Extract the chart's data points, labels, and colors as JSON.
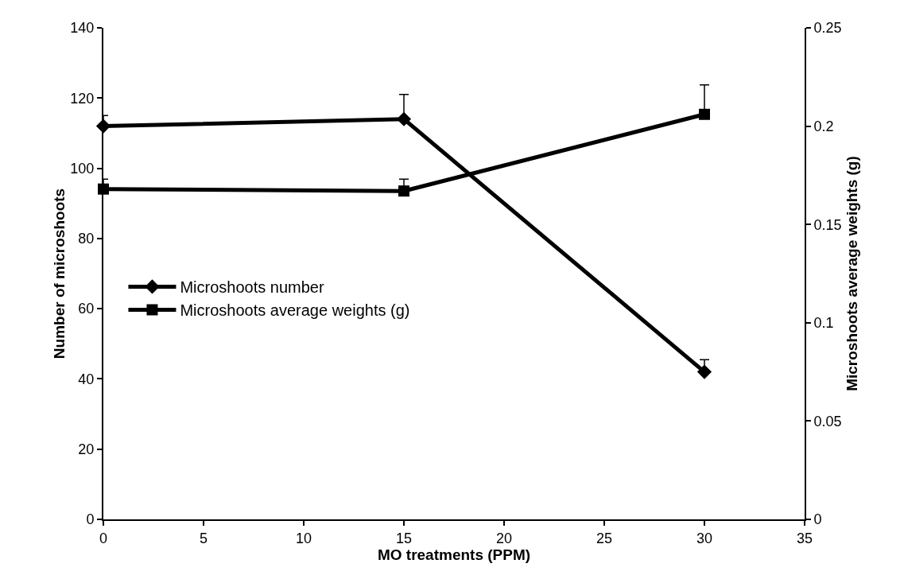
{
  "chart_data": {
    "type": "line",
    "xlabel": "MO treatments (PPM)",
    "ylabel": "Number of microshoots",
    "y2label": "Microshoots average weights (g)",
    "x": [
      0,
      15,
      30
    ],
    "series": [
      {
        "name": "Microshoots number",
        "color": "#000000",
        "marker": "diamond",
        "values": [
          112,
          114,
          42
        ],
        "errors": [
          [
            112,
            115
          ],
          [
            114,
            121
          ],
          [
            42,
            45.5
          ]
        ]
      },
      {
        "name": "Microshoots average weights (g)",
        "color": "#000000",
        "marker": "square",
        "axis": "y2",
        "values": [
          0.168,
          0.167,
          0.206
        ],
        "errors": [
          [
            0.168,
            0.173
          ],
          [
            0.167,
            0.173
          ],
          [
            0.206,
            0.221
          ]
        ]
      }
    ],
    "xlim": [
      0,
      35
    ],
    "xticks": [
      0,
      5,
      10,
      15,
      20,
      25,
      30,
      35
    ],
    "ylim": [
      0,
      140
    ],
    "yticks": [
      0,
      20,
      40,
      60,
      80,
      100,
      120,
      140
    ],
    "y2lim": [
      0,
      0.25
    ],
    "y2ticks": [
      0,
      0.05,
      0.1,
      0.15,
      0.2,
      0.25
    ],
    "grid": false,
    "legend": "left",
    "line_style": "solid"
  }
}
